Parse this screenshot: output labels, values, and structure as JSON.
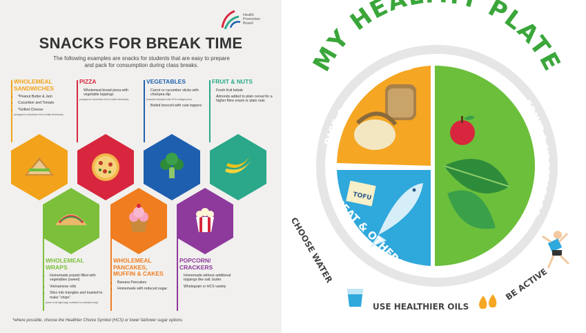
{
  "poster": {
    "logo_text": [
      "Health",
      "Promotion",
      "Board"
    ],
    "title": "SNACKS FOR BREAK TIME",
    "intro": "The following examples are snacks for students that are easy to prepare and pack for consumption during class breaks.",
    "categories": [
      {
        "heading": [
          "WHOLEMEAL",
          "SANDWICHES"
        ],
        "color": "#f2a31b",
        "items": [
          "*Peanut Butter & Jam",
          "Cucumber and Tomato",
          "*Grilled Cheese"
        ],
        "note": "(wrapped in aluminium foil to retain freshness)",
        "icon": "sandwich-icon"
      },
      {
        "heading": [
          "PIZZA"
        ],
        "color": "#d7263d",
        "items": [
          "Wholemeal bread pizza with vegetable toppings"
        ],
        "note": "(wrapped in aluminium foil to retain freshness)",
        "icon": "pizza-icon"
      },
      {
        "heading": [
          "VEGETABLES"
        ],
        "color": "#1f5fb0",
        "items": [
          "Carrot or cucumber sticks with chickpea dip",
          "Boiled broccoli with cute toppers"
        ],
        "note": "(mashed chickpea with HCS cottage juice)",
        "icon": "broccoli-icon"
      },
      {
        "heading": [
          "FRUIT & NUTS"
        ],
        "color": "#2aa889",
        "items": [
          "Fresh fruit kebab",
          "Almonds added to plain cereal for a higher fibre snack or plain nuts"
        ],
        "note": "",
        "icon": "banana-icon"
      },
      {
        "heading": [
          "WHOLEMEAL",
          "WRAPS"
        ],
        "color": "#7cbf3a",
        "items": [
          "Homemade popiah filled with vegetables (sweet)",
          "Vietnamese rolls",
          "Slice into triangles and toasted to make \"chips\""
        ],
        "note": "(store in air-tight bag/ container to maintain crisp)",
        "icon": "wrap-icon"
      },
      {
        "heading": [
          "WHOLEMEAL",
          "PANCAKES,",
          "MUFFIN & CAKES"
        ],
        "color": "#f07d1f",
        "items": [
          "Banana Pancakes",
          "Homemade with reduced sugar"
        ],
        "note": "",
        "icon": "cupcake-icon"
      },
      {
        "heading": [
          "POPCORN/",
          "CRACKERS"
        ],
        "color": "#8e3a9c",
        "items": [
          "Homemade without additional toppings like salt, butter",
          "Wholegrain or HCS variety"
        ],
        "note": "",
        "icon": "popcorn-icon"
      }
    ],
    "footnote": "*where possible, choose the Healthier Choice Symbol (HCS) or lower fat/lower sugar options"
  },
  "plate": {
    "title": "MY HEALTHY PLATE",
    "sections": {
      "grains": "BROWN RICE & WHOLEMEAL BREAD",
      "fruit_veg": "FRUIT & VEGETABLES",
      "protein": "MEAT & OTHERS"
    },
    "tofu_label": "TOFU",
    "tips": [
      "CHOOSE WATER",
      "USE HEALTHIER OILS",
      "BE ACTIVE"
    ],
    "colors": {
      "title": "#3aa63a",
      "grains": "#f5a623",
      "fruit_veg": "#6cbf3a",
      "protein": "#2fa8dc",
      "rim": "#e8e8e8"
    }
  }
}
